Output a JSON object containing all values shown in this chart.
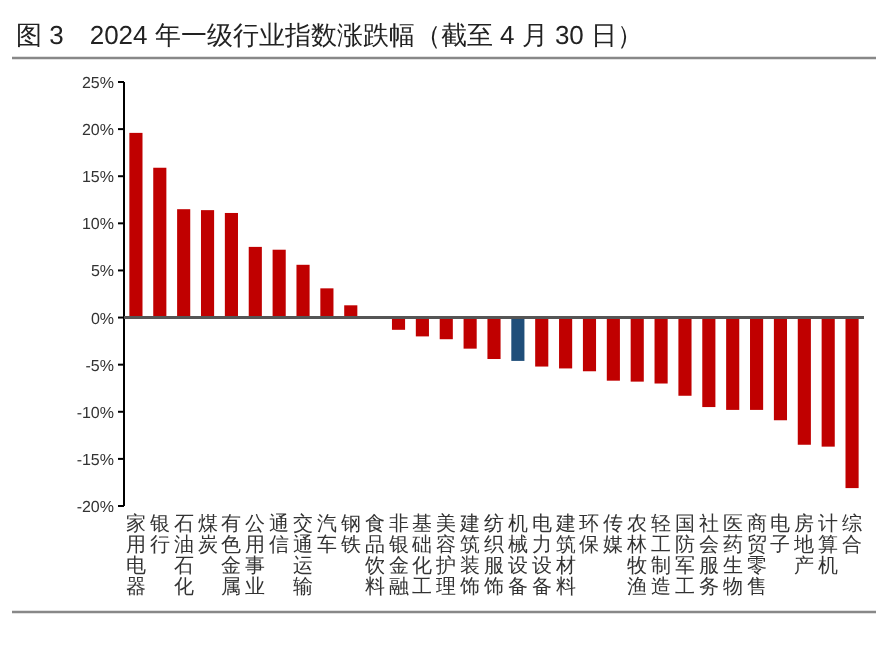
{
  "chart_data": {
    "type": "bar",
    "title": "图 3　2024 年一级行业指数涨跌幅（截至 4 月 30 日）",
    "categories": [
      "家用电器",
      "银行",
      "石油石化",
      "煤炭",
      "有色金属",
      "公用事业",
      "通信",
      "交通运输",
      "汽车",
      "钢铁",
      "食品饮料",
      "非银金融",
      "基础化工",
      "美容护理",
      "建筑装饰",
      "纺织服饰",
      "机械设备",
      "电力设备",
      "建筑材料",
      "环保",
      "传媒",
      "农林牧渔",
      "轻工制造",
      "国防军工",
      "社会服务",
      "医药生物",
      "商贸零售",
      "电子",
      "房地产",
      "计算机",
      "综合"
    ],
    "values": [
      19.6,
      15.9,
      11.5,
      11.4,
      11.1,
      7.5,
      7.2,
      5.6,
      3.1,
      1.3,
      -0.1,
      -1.3,
      -2.0,
      -2.3,
      -3.3,
      -4.4,
      -4.6,
      -5.2,
      -5.4,
      -5.7,
      -6.7,
      -6.8,
      -7.0,
      -8.3,
      -9.5,
      -9.8,
      -9.8,
      -10.9,
      -13.5,
      -13.7,
      -18.1
    ],
    "colors": [
      "#c00000",
      "#c00000",
      "#c00000",
      "#c00000",
      "#c00000",
      "#c00000",
      "#c00000",
      "#c00000",
      "#c00000",
      "#c00000",
      "#c00000",
      "#c00000",
      "#c00000",
      "#c00000",
      "#c00000",
      "#c00000",
      "#1f4e79",
      "#c00000",
      "#c00000",
      "#c00000",
      "#c00000",
      "#c00000",
      "#c00000",
      "#c00000",
      "#c00000",
      "#c00000",
      "#c00000",
      "#c00000",
      "#c00000",
      "#c00000",
      "#c00000"
    ],
    "ylim": [
      -20,
      25
    ],
    "yticks": [
      {
        "value": -20,
        "label": "-20%"
      },
      {
        "value": -15,
        "label": "-15%"
      },
      {
        "value": -10,
        "label": "-10%"
      },
      {
        "value": -5,
        "label": "-5%"
      },
      {
        "value": 0,
        "label": "0%"
      },
      {
        "value": 5,
        "label": "5%"
      },
      {
        "value": 10,
        "label": "10%"
      },
      {
        "value": 15,
        "label": "15%"
      },
      {
        "value": 20,
        "label": "20%"
      },
      {
        "value": 25,
        "label": "25%"
      }
    ]
  }
}
